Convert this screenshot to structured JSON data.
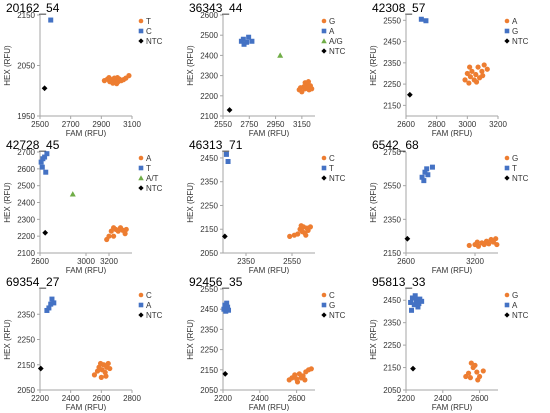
{
  "colors": {
    "orange": "#ED7D31",
    "blue": "#4472C4",
    "green": "#70AD47",
    "black": "#000000",
    "axis": "#a6a6a6"
  },
  "chart_data": [
    {
      "type": "scatter",
      "title": "20162_54",
      "xlabel": "FAM (RFU)",
      "ylabel": "HEX (RFU)",
      "xlim": [
        2500,
        3100
      ],
      "ylim": [
        1950,
        2150
      ],
      "xticks": [
        2500,
        2700,
        2900,
        3100
      ],
      "yticks": [
        1950,
        2050,
        2150
      ],
      "legend": "top-right",
      "series": [
        {
          "name": "T",
          "marker": "circle",
          "color": "#ED7D31",
          "points": [
            [
              2920,
              2020
            ],
            [
              2940,
              2023
            ],
            [
              2955,
              2018
            ],
            [
              2965,
              2022
            ],
            [
              2975,
              2015
            ],
            [
              2985,
              2025
            ],
            [
              2995,
              2020
            ],
            [
              3005,
              2026
            ],
            [
              3010,
              2018
            ],
            [
              3018,
              2023
            ],
            [
              3030,
              2020
            ],
            [
              3045,
              2022
            ],
            [
              3060,
              2025
            ],
            [
              3080,
              2030
            ],
            [
              2950,
              2026
            ],
            [
              3000,
              2014
            ]
          ]
        },
        {
          "name": "C",
          "marker": "square",
          "color": "#4472C4",
          "points": [
            [
              2570,
              2140
            ]
          ]
        },
        {
          "name": "NTC",
          "marker": "diamond",
          "color": "#000000",
          "points": [
            [
              2530,
              2005
            ]
          ]
        }
      ]
    },
    {
      "type": "scatter",
      "title": "36343_44",
      "xlabel": "FAM (RFU)",
      "ylabel": "HEX (RFU)",
      "xlim": [
        2550,
        3250
      ],
      "ylim": [
        2100,
        2600
      ],
      "xticks": [
        2550,
        2750,
        2950,
        3150
      ],
      "yticks": [
        2100,
        2200,
        2300,
        2400,
        2500,
        2600
      ],
      "legend": "top-right",
      "series": [
        {
          "name": "G",
          "marker": "circle",
          "color": "#ED7D31",
          "points": [
            [
              3130,
              2230
            ],
            [
              3150,
              2220
            ],
            [
              3165,
              2245
            ],
            [
              3175,
              2235
            ],
            [
              3185,
              2255
            ],
            [
              3195,
              2240
            ],
            [
              3205,
              2230
            ],
            [
              3215,
              2250
            ],
            [
              3225,
              2235
            ],
            [
              3175,
              2265
            ],
            [
              3140,
              2240
            ],
            [
              3200,
              2270
            ]
          ]
        },
        {
          "name": "A",
          "marker": "square",
          "color": "#4472C4",
          "points": [
            [
              2690,
              2470
            ],
            [
              2710,
              2455
            ],
            [
              2730,
              2465
            ],
            [
              2745,
              2490
            ],
            [
              2770,
              2470
            ],
            [
              2705,
              2480
            ]
          ]
        },
        {
          "name": "A/G",
          "marker": "triangle",
          "color": "#70AD47",
          "points": [
            [
              2985,
              2400
            ]
          ]
        },
        {
          "name": "NTC",
          "marker": "diamond",
          "color": "#000000",
          "points": [
            [
              2600,
              2130
            ]
          ]
        }
      ]
    },
    {
      "type": "scatter",
      "title": "42308_57",
      "xlabel": "FAM (RFU)",
      "ylabel": "HEX (RFU)",
      "xlim": [
        2600,
        3200
      ],
      "ylim": [
        2100,
        2575
      ],
      "xticks": [
        2600,
        2800,
        3000,
        3200
      ],
      "yticks": [
        2150,
        2250,
        2350,
        2450,
        2550
      ],
      "legend": "top-right",
      "series": [
        {
          "name": "A",
          "marker": "circle",
          "color": "#ED7D31",
          "points": [
            [
              2985,
              2270
            ],
            [
              3000,
              2300
            ],
            [
              3010,
              2255
            ],
            [
              3020,
              2285
            ],
            [
              3030,
              2310
            ],
            [
              3045,
              2270
            ],
            [
              3055,
              2295
            ],
            [
              3070,
              2330
            ],
            [
              3080,
              2280
            ],
            [
              3095,
              2310
            ],
            [
              3110,
              2340
            ],
            [
              3130,
              2320
            ],
            [
              3015,
              2330
            ],
            [
              3060,
              2260
            ],
            [
              3100,
              2290
            ]
          ]
        },
        {
          "name": "G",
          "marker": "square",
          "color": "#4472C4",
          "points": [
            [
              2700,
              2555
            ],
            [
              2730,
              2548
            ]
          ]
        },
        {
          "name": "NTC",
          "marker": "diamond",
          "color": "#000000",
          "points": [
            [
              2625,
              2200
            ]
          ]
        }
      ]
    },
    {
      "type": "scatter",
      "title": "42728_45",
      "xlabel": "FAM (RFU)",
      "ylabel": "HEX (RFU)",
      "xlim": [
        2600,
        3400
      ],
      "ylim": [
        2100,
        2700
      ],
      "xticks": [
        2600,
        3000,
        3200
      ],
      "yticks": [
        2100,
        2200,
        2300,
        2400,
        2500,
        2600,
        2700
      ],
      "legend": "top-right",
      "series": [
        {
          "name": "A",
          "marker": "circle",
          "color": "#ED7D31",
          "points": [
            [
              3180,
              2180
            ],
            [
              3200,
              2200
            ],
            [
              3220,
              2230
            ],
            [
              3240,
              2250
            ],
            [
              3260,
              2240
            ],
            [
              3280,
              2230
            ],
            [
              3300,
              2250
            ],
            [
              3320,
              2235
            ],
            [
              3340,
              2215
            ],
            [
              3350,
              2240
            ],
            [
              3240,
              2200
            ]
          ]
        },
        {
          "name": "T",
          "marker": "square",
          "color": "#4472C4",
          "points": [
            [
              2610,
              2640
            ],
            [
              2620,
              2610
            ],
            [
              2640,
              2670
            ],
            [
              2650,
              2580
            ],
            [
              2660,
              2690
            ],
            [
              2625,
              2660
            ]
          ]
        },
        {
          "name": "A/T",
          "marker": "triangle",
          "color": "#70AD47",
          "points": [
            [
              2885,
              2450
            ]
          ]
        },
        {
          "name": "NTC",
          "marker": "diamond",
          "color": "#000000",
          "points": [
            [
              2645,
              2220
            ]
          ]
        }
      ]
    },
    {
      "type": "scatter",
      "title": "46313_71",
      "xlabel": "FAM (RFU)",
      "ylabel": "HEX (RFU)",
      "xlim": [
        2250,
        2650
      ],
      "ylim": [
        2050,
        2475
      ],
      "xticks": [
        2350,
        2550
      ],
      "yticks": [
        2050,
        2150,
        2250,
        2350,
        2450
      ],
      "legend": "top-right",
      "series": [
        {
          "name": "C",
          "marker": "circle",
          "color": "#ED7D31",
          "points": [
            [
              2540,
              2120
            ],
            [
              2560,
              2125
            ],
            [
              2575,
              2130
            ],
            [
              2585,
              2150
            ],
            [
              2595,
              2140
            ],
            [
              2600,
              2160
            ],
            [
              2605,
              2135
            ],
            [
              2615,
              2155
            ],
            [
              2620,
              2145
            ],
            [
              2630,
              2160
            ],
            [
              2610,
              2125
            ],
            [
              2590,
              2165
            ]
          ]
        },
        {
          "name": "T",
          "marker": "square",
          "color": "#4472C4",
          "points": [
            [
              2265,
              2465
            ],
            [
              2272,
              2435
            ]
          ]
        },
        {
          "name": "NTC",
          "marker": "diamond",
          "color": "#000000",
          "points": [
            [
              2258,
              2120
            ]
          ]
        }
      ]
    },
    {
      "type": "scatter",
      "title": "6542_68",
      "xlabel": "FAM (RFU)",
      "ylabel": "HEX (RFU)",
      "xlim": [
        2600,
        3400
      ],
      "ylim": [
        2150,
        2750
      ],
      "xticks": [
        2600,
        3200
      ],
      "yticks": [
        2150,
        2350,
        2550,
        2750
      ],
      "legend": "top-right",
      "series": [
        {
          "name": "G",
          "marker": "circle",
          "color": "#ED7D31",
          "points": [
            [
              3150,
              2195
            ],
            [
              3200,
              2200
            ],
            [
              3230,
              2190
            ],
            [
              3260,
              2210
            ],
            [
              3280,
              2200
            ],
            [
              3300,
              2220
            ],
            [
              3320,
              2205
            ],
            [
              3340,
              2230
            ],
            [
              3360,
              2215
            ],
            [
              3380,
              2235
            ],
            [
              3390,
              2200
            ],
            [
              3220,
              2215
            ]
          ]
        },
        {
          "name": "T",
          "marker": "square",
          "color": "#4472C4",
          "points": [
            [
              2740,
              2600
            ],
            [
              2755,
              2580
            ],
            [
              2765,
              2630
            ],
            [
              2780,
              2650
            ],
            [
              2790,
              2615
            ],
            [
              2830,
              2660
            ]
          ]
        },
        {
          "name": "NTC",
          "marker": "diamond",
          "color": "#000000",
          "points": [
            [
              2612,
              2235
            ]
          ]
        }
      ]
    },
    {
      "type": "scatter",
      "title": "69354_27",
      "xlabel": "FAM (RFU)",
      "ylabel": "HEX (RFU)",
      "xlim": [
        2200,
        2800
      ],
      "ylim": [
        2050,
        2450
      ],
      "xticks": [
        2200,
        2400,
        2600,
        2800
      ],
      "yticks": [
        2050,
        2150,
        2250,
        2350
      ],
      "legend": "top-right",
      "series": [
        {
          "name": "C",
          "marker": "circle",
          "color": "#ED7D31",
          "points": [
            [
              2555,
              2110
            ],
            [
              2575,
              2125
            ],
            [
              2585,
              2140
            ],
            [
              2595,
              2155
            ],
            [
              2605,
              2130
            ],
            [
              2615,
              2150
            ],
            [
              2625,
              2120
            ],
            [
              2635,
              2140
            ],
            [
              2645,
              2155
            ],
            [
              2655,
              2135
            ],
            [
              2600,
              2100
            ],
            [
              2630,
              2105
            ]
          ]
        },
        {
          "name": "A",
          "marker": "square",
          "color": "#4472C4",
          "points": [
            [
              2245,
              2365
            ],
            [
              2258,
              2375
            ],
            [
              2270,
              2390
            ],
            [
              2278,
              2410
            ],
            [
              2290,
              2395
            ]
          ]
        },
        {
          "name": "NTC",
          "marker": "diamond",
          "color": "#000000",
          "points": [
            [
              2205,
              2135
            ]
          ]
        }
      ]
    },
    {
      "type": "scatter",
      "title": "92456_35",
      "xlabel": "FAM (RFU)",
      "ylabel": "HEX (RFU)",
      "xlim": [
        2200,
        2700
      ],
      "ylim": [
        2050,
        2550
      ],
      "xticks": [
        2200,
        2400,
        2600
      ],
      "yticks": [
        2050,
        2150,
        2250,
        2350,
        2450,
        2550
      ],
      "legend": "top-right",
      "series": [
        {
          "name": "C",
          "marker": "circle",
          "color": "#ED7D31",
          "points": [
            [
              2560,
              2100
            ],
            [
              2575,
              2110
            ],
            [
              2590,
              2125
            ],
            [
              2600,
              2105
            ],
            [
              2615,
              2130
            ],
            [
              2625,
              2110
            ],
            [
              2635,
              2120
            ],
            [
              2650,
              2140
            ],
            [
              2665,
              2150
            ],
            [
              2680,
              2155
            ],
            [
              2605,
              2090
            ],
            [
              2645,
              2100
            ]
          ]
        },
        {
          "name": "G",
          "marker": "square",
          "color": "#4472C4",
          "points": [
            [
              2205,
              2450
            ],
            [
              2210,
              2470
            ],
            [
              2215,
              2440
            ],
            [
              2220,
              2480
            ],
            [
              2225,
              2460
            ],
            [
              2230,
              2445
            ]
          ]
        },
        {
          "name": "NTC",
          "marker": "diamond",
          "color": "#000000",
          "points": [
            [
              2212,
              2130
            ]
          ]
        }
      ]
    },
    {
      "type": "scatter",
      "title": "95813_33",
      "xlabel": "FAM (RFU)",
      "ylabel": "HEX (RFU)",
      "xlim": [
        2200,
        2700
      ],
      "ylim": [
        2050,
        2500
      ],
      "xticks": [
        2200,
        2400,
        2600
      ],
      "yticks": [
        2050,
        2150,
        2250,
        2350,
        2450
      ],
      "legend": "top-right",
      "series": [
        {
          "name": "G",
          "marker": "circle",
          "color": "#ED7D31",
          "points": [
            [
              2525,
              2110
            ],
            [
              2540,
              2125
            ],
            [
              2550,
              2105
            ],
            [
              2565,
              2150
            ],
            [
              2575,
              2160
            ],
            [
              2585,
              2130
            ],
            [
              2600,
              2110
            ],
            [
              2620,
              2135
            ],
            [
              2555,
              2170
            ],
            [
              2590,
              2095
            ]
          ]
        },
        {
          "name": "A",
          "marker": "square",
          "color": "#4472C4",
          "points": [
            [
              2225,
              2440
            ],
            [
              2235,
              2460
            ],
            [
              2245,
              2430
            ],
            [
              2255,
              2450
            ],
            [
              2265,
              2420
            ],
            [
              2275,
              2455
            ],
            [
              2285,
              2445
            ],
            [
              2230,
              2405
            ],
            [
              2250,
              2470
            ],
            [
              2270,
              2435
            ]
          ]
        },
        {
          "name": "NTC",
          "marker": "diamond",
          "color": "#000000",
          "points": [
            [
              2238,
              2145
            ]
          ]
        }
      ]
    }
  ]
}
